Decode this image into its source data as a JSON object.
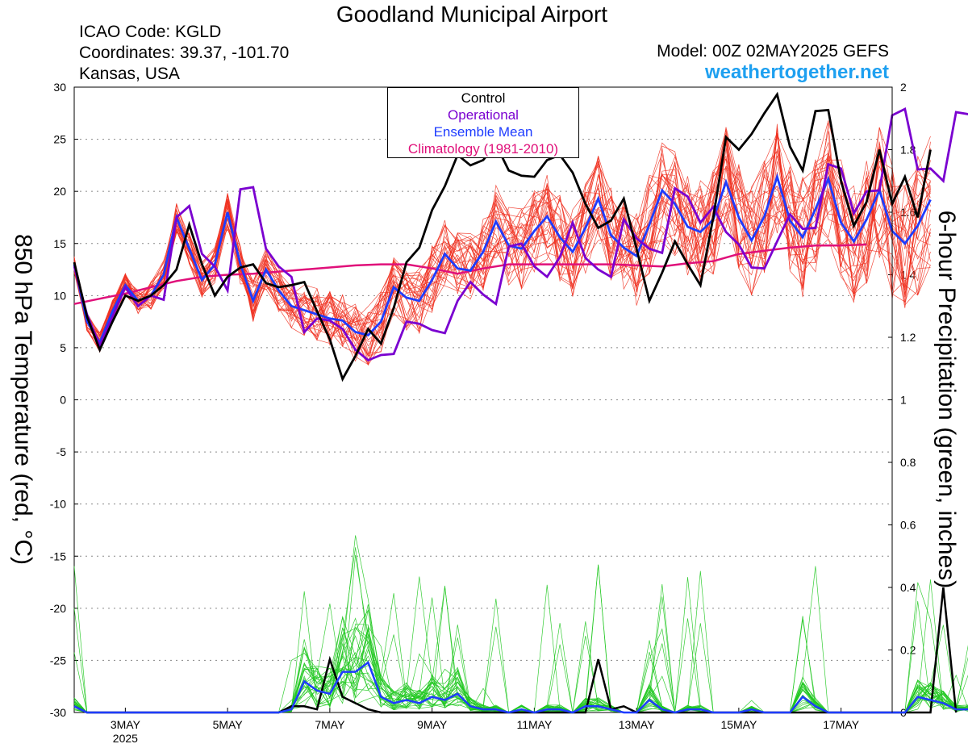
{
  "header": {
    "title": "Goodland Municipal Airport",
    "icao": "ICAO Code: KGLD",
    "coords": "Coordinates: 39.37, -101.70",
    "location": "Kansas, USA",
    "model": "Model: 00Z 02MAY2025 GEFS",
    "site": "weathertogether.net"
  },
  "colors": {
    "control": "#000000",
    "operational": "#7a00d0",
    "mean": "#1e3cff",
    "climatology": "#e0107a",
    "ensemble_temp": "#f03020",
    "ensemble_precip": "#20c820"
  },
  "chart_data": {
    "type": "line",
    "title": "Goodland Municipal Airport",
    "ylabel": "850 hPa Temperature (red, °C)",
    "y2label": "6-hour Precipitation (green, inches)",
    "ylim": [
      -30,
      30
    ],
    "y2lim": [
      0,
      2
    ],
    "yticks": [
      "30",
      "25",
      "20",
      "15",
      "10",
      "5",
      "0",
      "-5",
      "-10",
      "-15",
      "-20",
      "-25",
      "-30"
    ],
    "y2ticks": [
      "2",
      "1.8",
      "1.6",
      "1.4",
      "1.2",
      "1",
      "0.8",
      "0.6",
      "0.4",
      "0.2",
      "0"
    ],
    "x_start_day": 2.0,
    "x_end_day": 18.0,
    "xticks": [
      {
        "day": 3,
        "label": "3MAY",
        "sub": "2025"
      },
      {
        "day": 5,
        "label": "5MAY"
      },
      {
        "day": 7,
        "label": "7MAY"
      },
      {
        "day": 9,
        "label": "9MAY"
      },
      {
        "day": 11,
        "label": "11MAY"
      },
      {
        "day": 13,
        "label": "13MAY"
      },
      {
        "day": 15,
        "label": "15MAY"
      },
      {
        "day": 17,
        "label": "17MAY"
      }
    ],
    "grid": true,
    "legend": {
      "position": "top-center",
      "entries": [
        "Control",
        "Operational",
        "Ensemble Mean",
        "Climatology (1981-2010)"
      ]
    },
    "step_days": 0.25,
    "temp_series": {
      "control": [
        13.2,
        8,
        4.8,
        7.5,
        10,
        9.5,
        10,
        11,
        12.5,
        16.8,
        13,
        10,
        11.8,
        12.7,
        13,
        11.2,
        10.8,
        11,
        11.3,
        8.5,
        5.8,
        2,
        4.2,
        6.8,
        5.4,
        8.8,
        13.2,
        14.6,
        18.2,
        20.5,
        23.5,
        22.5,
        23,
        24.5,
        22,
        21.5,
        21.4,
        23,
        23.5,
        21.8,
        18.8,
        16.5,
        17.2,
        19.3,
        14.5,
        9.5,
        12.2,
        15.2,
        13,
        11,
        17.5,
        25.2,
        24,
        25.5,
        27.5,
        29.3,
        24.3,
        22,
        27.7,
        27.8,
        21,
        16.7,
        19,
        24,
        18.8,
        21.4,
        17.5,
        24
      ],
      "operational": [
        12.8,
        8.2,
        5.2,
        8,
        10.8,
        9,
        10,
        9.6,
        17.5,
        18.6,
        14,
        12.8,
        10.5,
        20.2,
        20.4,
        14.5,
        12.8,
        11.8,
        6.5,
        7.8,
        7.6,
        6.8,
        4.8,
        3.8,
        4.3,
        4.4,
        7.5,
        7.3,
        6.7,
        6.4,
        9.5,
        11.3,
        10.1,
        9.2,
        14.7,
        15,
        12.8,
        11.8,
        13.7,
        17,
        13.6,
        12.5,
        11.8,
        17.3,
        15.5,
        14.5,
        14.1,
        20.3,
        19.5,
        17,
        18.5,
        16.1,
        14.9,
        12.7,
        12.6,
        15.2,
        17.8,
        16.4,
        16.5,
        22.6,
        22.2,
        17.9,
        20,
        20.1,
        27.3,
        27.9,
        22.1,
        22.2,
        21,
        27.6,
        27.4
      ],
      "mean": [
        13,
        7.5,
        5.5,
        8.5,
        11,
        9.5,
        10,
        12,
        17.5,
        14.5,
        11.5,
        13,
        18,
        13,
        9.5,
        12.5,
        10.5,
        9,
        8.6,
        8.2,
        7.8,
        7.6,
        6.5,
        6.2,
        7.5,
        10.8,
        9.8,
        9.5,
        11.5,
        14,
        12.6,
        12.4,
        14.2,
        17.1,
        14.8,
        14.5,
        16.2,
        17.6,
        15.6,
        14.2,
        16.5,
        19.3,
        15.8,
        14.6,
        13.8,
        16.8,
        20.1,
        18.8,
        16.6,
        16.1,
        17.3,
        20.9,
        17.5,
        15.3,
        17.6,
        21.4,
        17.2,
        15.6,
        18.3,
        21.2,
        17,
        15.2,
        17.3,
        20.1,
        16.2,
        15,
        16.7,
        19.2
      ],
      "climatology": [
        9.2,
        9.7,
        10.2,
        10.8,
        11.4,
        11.8,
        12.0,
        12.1,
        12.3,
        12.5,
        12.7,
        12.9,
        13.0,
        13.0,
        12.6,
        12.1,
        12.6,
        13.0,
        13.0,
        13.0,
        13.0,
        13.0,
        12.9,
        12.8,
        13.1,
        13.3,
        14.0,
        14.3,
        14.6,
        14.8,
        14.8,
        14.9
      ]
    },
    "precip_series": {
      "control": [
        0.02,
        0,
        0,
        0,
        0,
        0,
        0,
        0,
        0,
        0,
        0,
        0,
        0,
        0,
        0,
        0,
        0,
        0.02,
        0.02,
        0.01,
        0.17,
        0.05,
        0.03,
        0.01,
        0,
        0,
        0,
        0,
        0,
        0,
        0,
        0,
        0,
        0,
        0,
        0,
        0,
        0,
        0,
        0,
        0,
        0.17,
        0.01,
        0.02,
        0,
        0,
        0,
        0,
        0,
        0,
        0,
        0,
        0,
        0,
        0,
        0,
        0,
        0,
        0,
        0,
        0,
        0,
        0,
        0,
        0,
        0,
        0,
        0,
        0.4,
        0
      ],
      "mean": [
        0.02,
        0,
        0,
        0,
        0,
        0,
        0,
        0,
        0,
        0,
        0,
        0,
        0,
        0,
        0,
        0,
        0,
        0.01,
        0.1,
        0.07,
        0.06,
        0.13,
        0.13,
        0.16,
        0.05,
        0.03,
        0.04,
        0.03,
        0.05,
        0.04,
        0.06,
        0.02,
        0.01,
        0.01,
        0,
        0.01,
        0,
        0.01,
        0.01,
        0,
        0.02,
        0.02,
        0.01,
        0,
        0,
        0.04,
        0.01,
        0,
        0.01,
        0.01,
        0,
        0,
        0,
        0.01,
        0,
        0,
        0,
        0.05,
        0.02,
        0,
        0,
        0,
        0,
        0,
        0,
        0,
        0.05,
        0.04,
        0.03,
        0.01,
        0.01
      ]
    }
  }
}
